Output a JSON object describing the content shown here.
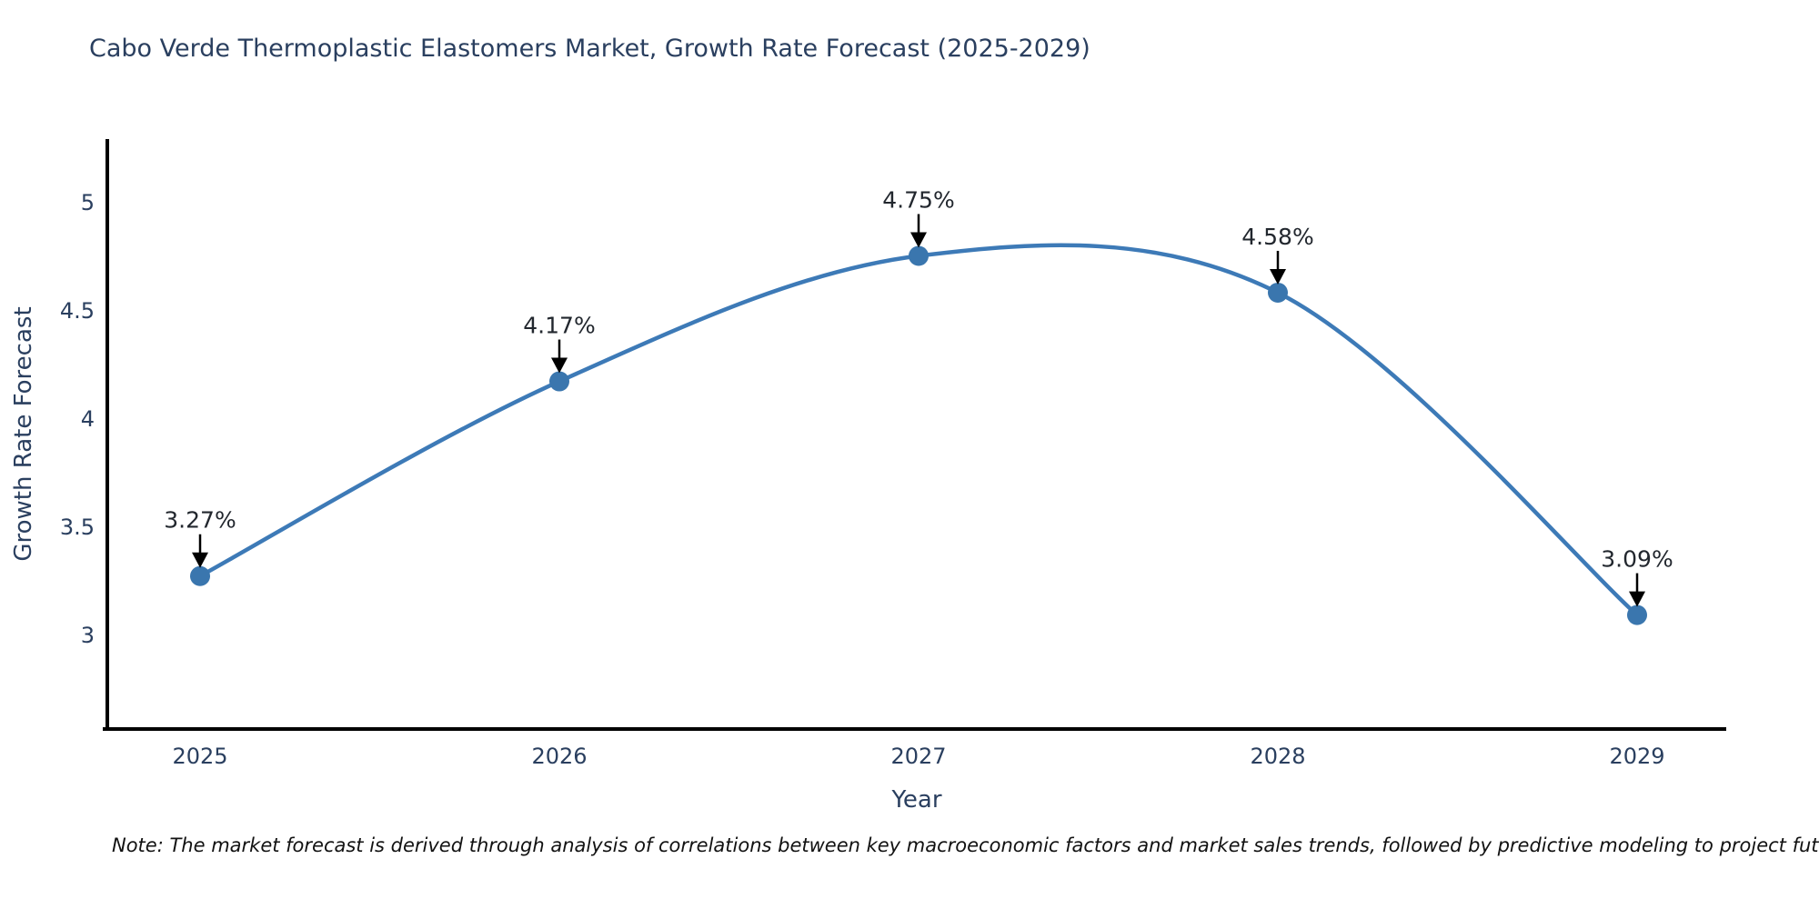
{
  "title": "Cabo Verde Thermoplastic Elastomers Market, Growth Rate Forecast (2025-2029)",
  "note": "Note: The market forecast is derived through analysis of correlations between key macroeconomic factors and market sales trends, followed by predictive modeling to project future sales",
  "chart_data": {
    "type": "line",
    "line_shape": "spline",
    "title": "Cabo Verde Thermoplastic Elastomers Market, Growth Rate Forecast (2025-2029)",
    "xlabel": "Year",
    "ylabel": "Growth Rate Forecast",
    "x": [
      2025,
      2026,
      2027,
      2028,
      2029
    ],
    "values": [
      3.27,
      4.17,
      4.75,
      4.58,
      3.09
    ],
    "point_labels": [
      "3.27%",
      "4.17%",
      "4.75%",
      "4.58%",
      "3.09%"
    ],
    "xticks": [
      "2025",
      "2026",
      "2027",
      "2028",
      "2029"
    ],
    "yticks": [
      3,
      3.5,
      4,
      4.5,
      5
    ],
    "xlim": [
      2024.74,
      2029.27
    ],
    "ylim": [
      2.56,
      5.29
    ],
    "grid": false,
    "legend": "none",
    "annotations_arrow": "down-black",
    "colors": {
      "line": "#3d7ab7",
      "marker": "#3a76ae",
      "axis": "#000000",
      "tick_text": "#2a3f5f",
      "axis_title_text": "#2a3f5f",
      "annotation_text": "#22272e",
      "arrow": "#000000",
      "background": "#ffffff"
    }
  }
}
